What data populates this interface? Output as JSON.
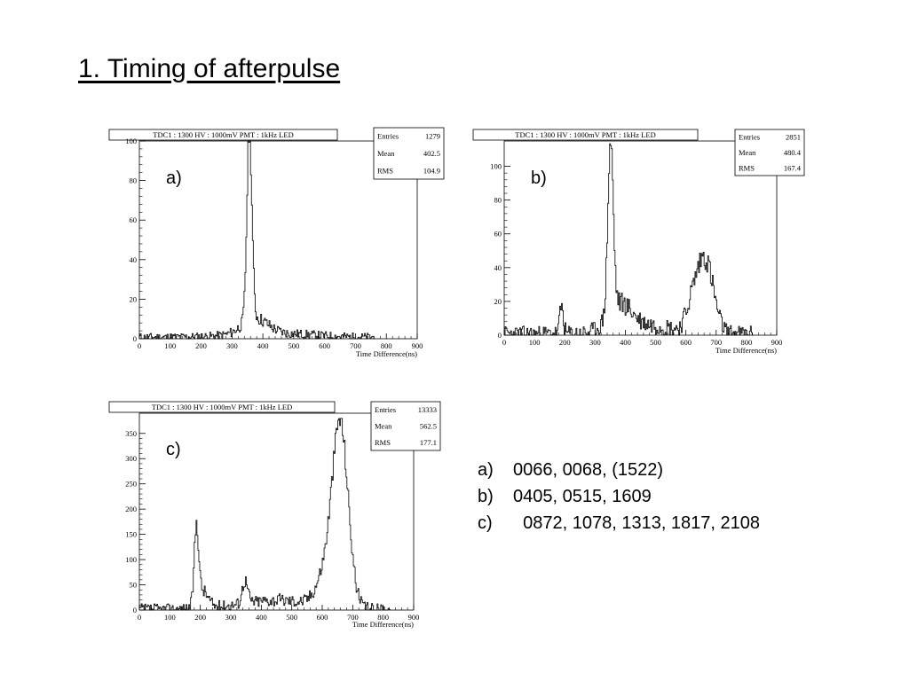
{
  "slide": {
    "title": "1. Timing of afterpulse"
  },
  "chart_data": [
    {
      "type": "histogram",
      "panel_label": "a)",
      "title": "TDC1 : 1300 HV : 1000mV PMT : 1kHz  LED",
      "xlabel": "Time Difference(ns)",
      "ylabel": "",
      "xlim": [
        0,
        900
      ],
      "ylim": [
        0,
        100
      ],
      "xticks": [
        0,
        100,
        200,
        300,
        400,
        500,
        600,
        700,
        800,
        900
      ],
      "yticks": [
        0,
        20,
        40,
        60,
        80,
        100
      ],
      "stats": [
        {
          "name": "Entries",
          "value": "1279"
        },
        {
          "name": "Mean",
          "value": "402.5"
        },
        {
          "name": "RMS",
          "value": "104.9"
        }
      ],
      "peaks": [
        {
          "center": 355,
          "height": 97,
          "sigma": 8
        },
        {
          "center": 372,
          "height": 8,
          "sigma": 40
        },
        {
          "center": 430,
          "height": 2,
          "sigma": 120
        }
      ],
      "baseline": 0.8,
      "noise": 1.5,
      "seed": 11,
      "xmax_data": 760
    },
    {
      "type": "histogram",
      "panel_label": "b)",
      "title": "TDC1 : 1300 HV : 1000mV PMT : 1kHz  LED",
      "xlabel": "Time Difference(ns)",
      "ylabel": "",
      "xlim": [
        0,
        900
      ],
      "ylim": [
        0,
        115
      ],
      "xticks": [
        0,
        100,
        200,
        300,
        400,
        500,
        600,
        700,
        800,
        900
      ],
      "yticks": [
        0,
        20,
        40,
        60,
        80,
        100
      ],
      "stats": [
        {
          "name": "Entries",
          "value": "2851"
        },
        {
          "name": "Mean",
          "value": "480.4"
        },
        {
          "name": "RMS",
          "value": "167.4"
        }
      ],
      "peaks": [
        {
          "center": 188,
          "height": 16,
          "sigma": 6
        },
        {
          "center": 350,
          "height": 100,
          "sigma": 9
        },
        {
          "center": 380,
          "height": 15,
          "sigma": 38
        },
        {
          "center": 660,
          "height": 45,
          "sigma": 28
        },
        {
          "center": 615,
          "height": 10,
          "sigma": 18
        },
        {
          "center": 470,
          "height": 5,
          "sigma": 90
        }
      ],
      "baseline": 1,
      "noise": 4,
      "seed": 23,
      "xmax_data": 820
    },
    {
      "type": "histogram",
      "panel_label": "c)",
      "title": "TDC1 : 1300 HV : 1000mV PMT : 1kHz  LED",
      "xlabel": "Time Difference(ns)",
      "ylabel": "",
      "xlim": [
        0,
        900
      ],
      "ylim": [
        0,
        390
      ],
      "xticks": [
        0,
        100,
        200,
        300,
        400,
        500,
        600,
        700,
        800,
        900
      ],
      "yticks": [
        0,
        50,
        100,
        150,
        200,
        250,
        300,
        350
      ],
      "stats": [
        {
          "name": "Entries",
          "value": "13333"
        },
        {
          "name": "Mean",
          "value": "562.5"
        },
        {
          "name": "RMS",
          "value": "177.1"
        }
      ],
      "peaks": [
        {
          "center": 186,
          "height": 150,
          "sigma": 7
        },
        {
          "center": 205,
          "height": 35,
          "sigma": 18
        },
        {
          "center": 345,
          "height": 45,
          "sigma": 9
        },
        {
          "center": 450,
          "height": 18,
          "sigma": 120
        },
        {
          "center": 658,
          "height": 355,
          "sigma": 26
        },
        {
          "center": 610,
          "height": 60,
          "sigma": 30
        }
      ],
      "baseline": 2,
      "noise": 10,
      "seed": 37,
      "xmax_data": 820
    }
  ],
  "notes": [
    {
      "label": "a)",
      "text": "0066,  0068,  (1522)"
    },
    {
      "label": "b)",
      "text": "0405,  0515, 1609"
    },
    {
      "label": "c)",
      "text": "  0872, 1078, 1313, 1817, 2108"
    }
  ]
}
